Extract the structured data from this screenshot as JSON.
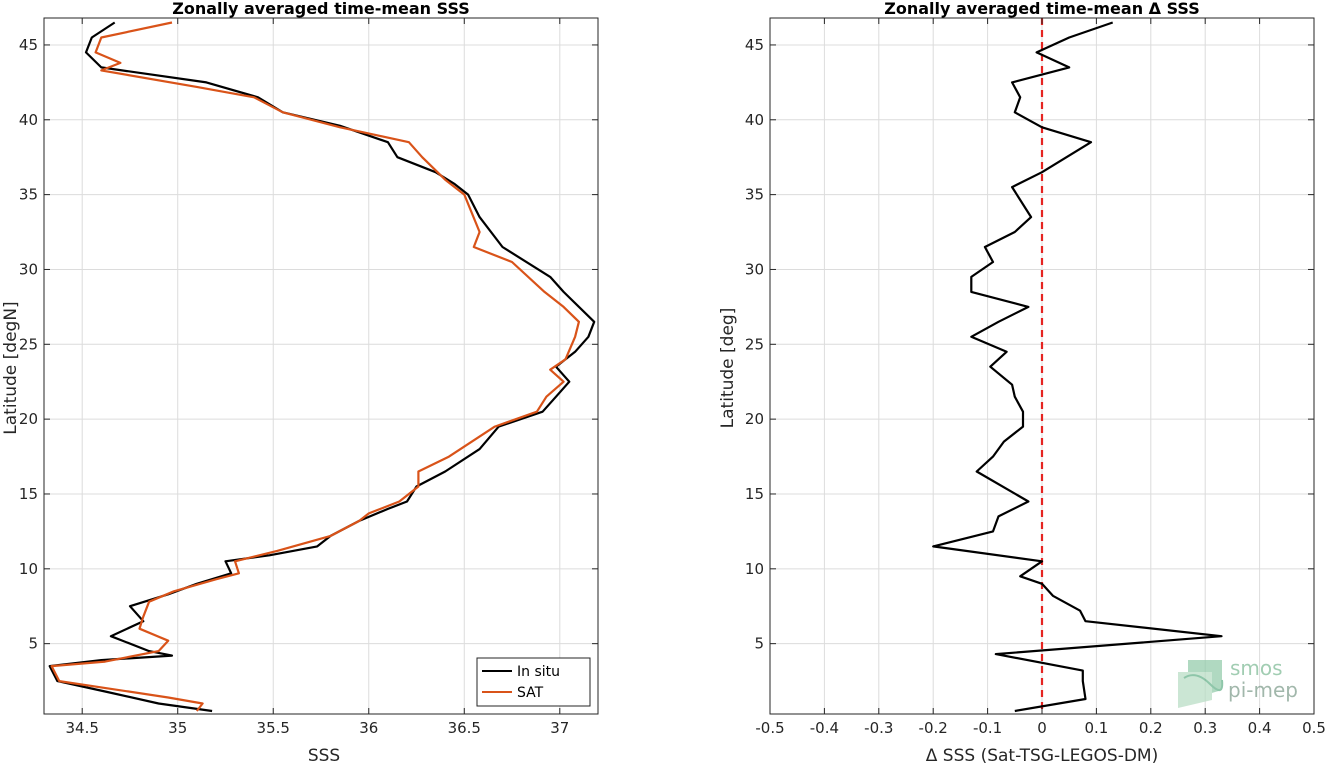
{
  "chart_data": [
    {
      "type": "line",
      "title": "Zonally averaged time-mean SSS",
      "xlabel": "SSS",
      "ylabel": "Latitude [degN]",
      "xlim": [
        34.3,
        37.2
      ],
      "ylim": [
        0.3,
        46.8
      ],
      "xticks": [
        34.5,
        35,
        35.5,
        36,
        36.5,
        37
      ],
      "xtick_labels": [
        "34.5",
        "35",
        "35.5",
        "36",
        "36.5",
        "37"
      ],
      "yticks": [
        5,
        10,
        15,
        20,
        25,
        30,
        35,
        40,
        45
      ],
      "ytick_labels": [
        "5",
        "10",
        "15",
        "20",
        "25",
        "30",
        "35",
        "40",
        "45"
      ],
      "grid": true,
      "legend": "bottom-right",
      "series": [
        {
          "name": "In situ",
          "color": "#000000",
          "points": [
            [
              35.18,
              0.5
            ],
            [
              34.9,
              1.0
            ],
            [
              34.62,
              1.8
            ],
            [
              34.37,
              2.5
            ],
            [
              34.33,
              3.5
            ],
            [
              34.6,
              3.9
            ],
            [
              34.97,
              4.2
            ],
            [
              34.85,
              4.5
            ],
            [
              34.65,
              5.5
            ],
            [
              34.82,
              6.5
            ],
            [
              34.75,
              7.5
            ],
            [
              34.95,
              8.3
            ],
            [
              35.1,
              9.0
            ],
            [
              35.28,
              9.7
            ],
            [
              35.25,
              10.5
            ],
            [
              35.48,
              10.9
            ],
            [
              35.73,
              11.5
            ],
            [
              35.8,
              12.2
            ],
            [
              35.95,
              13.2
            ],
            [
              36.1,
              14.0
            ],
            [
              36.2,
              14.5
            ],
            [
              36.25,
              15.5
            ],
            [
              36.4,
              16.5
            ],
            [
              36.58,
              18.0
            ],
            [
              36.68,
              19.5
            ],
            [
              36.91,
              20.5
            ],
            [
              36.98,
              21.5
            ],
            [
              37.05,
              22.5
            ],
            [
              36.98,
              23.5
            ],
            [
              37.08,
              24.5
            ],
            [
              37.15,
              25.5
            ],
            [
              37.18,
              26.5
            ],
            [
              37.02,
              28.5
            ],
            [
              36.95,
              29.5
            ],
            [
              36.7,
              31.5
            ],
            [
              36.58,
              33.5
            ],
            [
              36.52,
              35.0
            ],
            [
              36.45,
              35.7
            ],
            [
              36.35,
              36.5
            ],
            [
              36.15,
              37.5
            ],
            [
              36.1,
              38.5
            ],
            [
              35.85,
              39.6
            ],
            [
              35.55,
              40.5
            ],
            [
              35.42,
              41.5
            ],
            [
              35.15,
              42.5
            ],
            [
              34.6,
              43.5
            ],
            [
              34.52,
              44.5
            ],
            [
              34.55,
              45.5
            ],
            [
              34.67,
              46.5
            ]
          ]
        },
        {
          "name": "SAT",
          "color": "#d95319",
          "points": [
            [
              35.1,
              0.5
            ],
            [
              35.13,
              1.0
            ],
            [
              34.95,
              1.4
            ],
            [
              34.38,
              2.5
            ],
            [
              34.34,
              3.5
            ],
            [
              34.62,
              3.8
            ],
            [
              34.9,
              4.5
            ],
            [
              34.95,
              5.2
            ],
            [
              34.8,
              6.0
            ],
            [
              34.82,
              6.8
            ],
            [
              34.85,
              7.8
            ],
            [
              34.98,
              8.5
            ],
            [
              35.2,
              9.3
            ],
            [
              35.32,
              9.7
            ],
            [
              35.3,
              10.5
            ],
            [
              35.52,
              11.2
            ],
            [
              35.8,
              12.2
            ],
            [
              35.95,
              13.2
            ],
            [
              36.0,
              13.7
            ],
            [
              36.16,
              14.5
            ],
            [
              36.26,
              15.5
            ],
            [
              36.26,
              16.5
            ],
            [
              36.42,
              17.5
            ],
            [
              36.66,
              19.5
            ],
            [
              36.88,
              20.5
            ],
            [
              36.93,
              21.5
            ],
            [
              37.02,
              22.5
            ],
            [
              36.95,
              23.3
            ],
            [
              37.03,
              24.0
            ],
            [
              37.08,
              25.5
            ],
            [
              37.1,
              26.5
            ],
            [
              37.02,
              27.5
            ],
            [
              36.92,
              28.5
            ],
            [
              36.75,
              30.5
            ],
            [
              36.55,
              31.5
            ],
            [
              36.58,
              32.5
            ],
            [
              36.5,
              35.0
            ],
            [
              36.4,
              36.0
            ],
            [
              36.28,
              37.5
            ],
            [
              36.21,
              38.5
            ],
            [
              35.85,
              39.5
            ],
            [
              35.55,
              40.5
            ],
            [
              35.4,
              41.5
            ],
            [
              35.1,
              42.2
            ],
            [
              34.6,
              43.3
            ],
            [
              34.7,
              43.8
            ],
            [
              34.57,
              44.5
            ],
            [
              34.6,
              45.5
            ],
            [
              34.97,
              46.5
            ]
          ]
        }
      ]
    },
    {
      "type": "line",
      "title": "Zonally averaged time-mean Δ SSS",
      "xlabel": "Δ SSS (Sat-TSG-LEGOS-DM)",
      "ylabel": "Latitude [deg]",
      "xlim": [
        -0.5,
        0.5
      ],
      "ylim": [
        0.3,
        46.8
      ],
      "xticks": [
        -0.5,
        -0.4,
        -0.3,
        -0.2,
        -0.1,
        0,
        0.1,
        0.2,
        0.3,
        0.4,
        0.5
      ],
      "xtick_labels": [
        "-0.5",
        "-0.4",
        "-0.3",
        "-0.2",
        "-0.1",
        "0",
        "0.1",
        "0.2",
        "0.3",
        "0.4",
        "0.5"
      ],
      "yticks": [
        5,
        10,
        15,
        20,
        25,
        30,
        35,
        40,
        45
      ],
      "ytick_labels": [
        "5",
        "10",
        "15",
        "20",
        "25",
        "30",
        "35",
        "40",
        "45"
      ],
      "grid": true,
      "reference_line": {
        "x": 0,
        "color": "#e52421",
        "style": "dashed"
      },
      "series": [
        {
          "color": "#000000",
          "points": [
            [
              -0.05,
              0.5
            ],
            [
              0.08,
              1.3
            ],
            [
              0.075,
              2.5
            ],
            [
              0.075,
              3.2
            ],
            [
              -0.085,
              4.3
            ],
            [
              0.33,
              5.5
            ],
            [
              0.08,
              6.5
            ],
            [
              0.07,
              7.2
            ],
            [
              0.02,
              8.2
            ],
            [
              0.0,
              9.0
            ],
            [
              -0.04,
              9.5
            ],
            [
              0.0,
              10.5
            ],
            [
              -0.2,
              11.5
            ],
            [
              -0.09,
              12.5
            ],
            [
              -0.08,
              13.5
            ],
            [
              -0.025,
              14.5
            ],
            [
              -0.12,
              16.5
            ],
            [
              -0.09,
              17.5
            ],
            [
              -0.07,
              18.5
            ],
            [
              -0.035,
              19.5
            ],
            [
              -0.035,
              20.5
            ],
            [
              -0.05,
              21.5
            ],
            [
              -0.055,
              22.3
            ],
            [
              -0.095,
              23.5
            ],
            [
              -0.065,
              24.5
            ],
            [
              -0.13,
              25.5
            ],
            [
              -0.08,
              26.5
            ],
            [
              -0.025,
              27.5
            ],
            [
              -0.13,
              28.5
            ],
            [
              -0.13,
              29.5
            ],
            [
              -0.09,
              30.5
            ],
            [
              -0.105,
              31.5
            ],
            [
              -0.05,
              32.5
            ],
            [
              -0.02,
              33.5
            ],
            [
              -0.055,
              35.5
            ],
            [
              0.0,
              36.5
            ],
            [
              0.09,
              38.5
            ],
            [
              0.0,
              39.5
            ],
            [
              -0.05,
              40.5
            ],
            [
              -0.04,
              41.5
            ],
            [
              -0.055,
              42.5
            ],
            [
              0.05,
              43.5
            ],
            [
              -0.01,
              44.5
            ],
            [
              0.05,
              45.5
            ],
            [
              0.13,
              46.5
            ]
          ]
        }
      ]
    }
  ],
  "legend_labels": [
    "In situ",
    "SAT"
  ],
  "logo": {
    "line1": "smos",
    "line2": "pi-mep"
  }
}
